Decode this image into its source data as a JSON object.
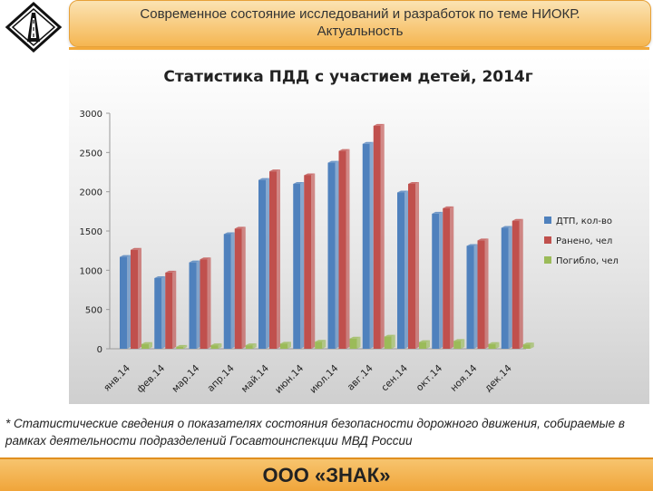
{
  "header": {
    "line1": "Современное состояние исследований и разработок по теме НИОКР.",
    "line2": "Актуальность"
  },
  "logo": {
    "icon": "road-sign-logo-icon"
  },
  "chart_data": {
    "type": "bar",
    "title": "Статистика ПДД с участием детей, 2014г",
    "categories": [
      "янв.14",
      "фев.14",
      "мар.14",
      "апр.14",
      "май.14",
      "июн.14",
      "июл.14",
      "авг.14",
      "сен.14",
      "окт.14",
      "ноя.14",
      "дек.14"
    ],
    "series": [
      {
        "name": "ДТП, кол-во",
        "color": "#4f81bd",
        "values": [
          1170,
          900,
          1100,
          1460,
          2150,
          2100,
          2370,
          2610,
          1990,
          1720,
          1310,
          1540
        ]
      },
      {
        "name": "Ранено, чел",
        "color": "#c0504d",
        "values": [
          1260,
          970,
          1140,
          1530,
          2260,
          2210,
          2520,
          2840,
          2100,
          1790,
          1380,
          1630
        ]
      },
      {
        "name": "Погибло, чел",
        "color": "#9bbb59",
        "values": [
          60,
          25,
          45,
          45,
          65,
          90,
          130,
          155,
          85,
          100,
          60,
          55
        ]
      }
    ],
    "ylim": [
      0,
      3000
    ],
    "yticks": [
      0,
      500,
      1000,
      1500,
      2000,
      2500,
      3000
    ],
    "grid": false,
    "legend": "right"
  },
  "note": "* Статистические сведения о показателях состояния безопасности дорожного движения, собираемые в рамках деятельности подразделений Госавтоинспекции МВД России",
  "footer": {
    "company": "ООО «ЗНАК»"
  }
}
